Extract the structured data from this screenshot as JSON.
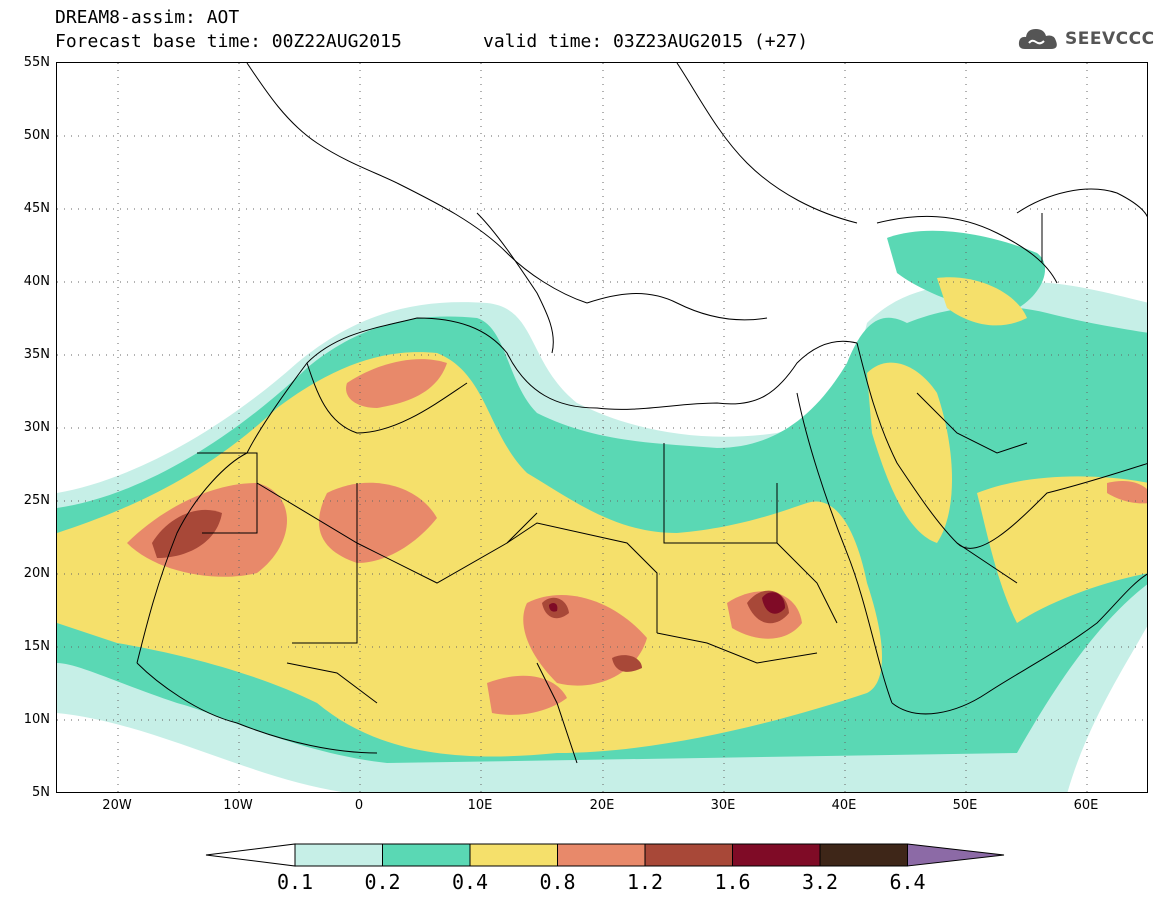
{
  "header": {
    "title": "DREAM8-assim: AOT",
    "base_time": "Forecast base time: 00Z22AUG2015",
    "valid_time": "valid time: 03Z23AUG2015 (+27)"
  },
  "logo": {
    "text": "SEEVCCC",
    "icon": "cloud-icon",
    "color": "#555555"
  },
  "map": {
    "projection": "latitude-longitude",
    "lon_range": [
      -25,
      65
    ],
    "lat_range": [
      5,
      55
    ],
    "lat_ticks": [
      "55N",
      "50N",
      "45N",
      "40N",
      "35N",
      "30N",
      "25N",
      "20N",
      "15N",
      "10N",
      "5N"
    ],
    "lon_ticks": [
      "20W",
      "10W",
      "0",
      "10E",
      "20E",
      "30E",
      "40E",
      "50E",
      "60E"
    ],
    "dotted_gridlines": true
  },
  "colorbar": {
    "levels": [
      "0.1",
      "0.2",
      "0.4",
      "0.8",
      "1.2",
      "1.6",
      "3.2",
      "6.4"
    ],
    "colors": [
      "#ffffff",
      "#c6efe7",
      "#5ad8b4",
      "#f5e06b",
      "#e8896a",
      "#a84838",
      "#7f0b26",
      "#3e2618",
      "#8c6aa6"
    ]
  }
}
